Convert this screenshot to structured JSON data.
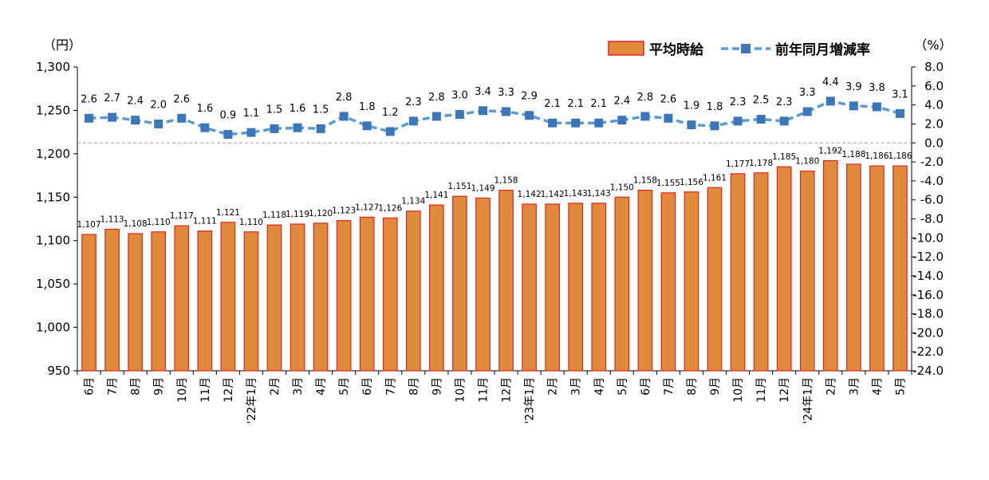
{
  "chart_data": {
    "type": "bar+line",
    "categories": [
      "6月",
      "7月",
      "8月",
      "9月",
      "10月",
      "11月",
      "12月",
      "'22年1月",
      "2月",
      "3月",
      "4月",
      "5月",
      "6月",
      "7月",
      "8月",
      "9月",
      "10月",
      "11月",
      "12月",
      "'23年1月",
      "2月",
      "3月",
      "4月",
      "5月",
      "6月",
      "7月",
      "8月",
      "9月",
      "10月",
      "11月",
      "12月",
      "'24年1月",
      "2月",
      "3月",
      "4月",
      "5月"
    ],
    "series": [
      {
        "name": "平均時給",
        "type": "bar",
        "axis": "left",
        "values": [
          1107,
          1113,
          1108,
          1110,
          1117,
          1111,
          1121,
          1110,
          1118,
          1119,
          1120,
          1123,
          1127,
          1126,
          1134,
          1141,
          1151,
          1149,
          1158,
          1142,
          1142,
          1143,
          1143,
          1150,
          1158,
          1155,
          1156,
          1161,
          1177,
          1178,
          1185,
          1180,
          1192,
          1188,
          1186,
          1186
        ],
        "labels": [
          "1,107",
          "1,113",
          "1,108",
          "1,110",
          "1,117",
          "1,111",
          "1,121",
          "1,110",
          "1,118",
          "1,119",
          "1,120",
          "1,123",
          "1,127",
          "1,126",
          "1,134",
          "1,141",
          "1,151",
          "1,149",
          "1,158",
          "1,142",
          "1,142",
          "1,143",
          "1,143",
          "1,150",
          "1,158",
          "1,155",
          "1,156",
          "1,161",
          "1,177",
          "1,178",
          "1,185",
          "1,180",
          "1,192",
          "1,188",
          "1,186",
          "1,186"
        ]
      },
      {
        "name": "前年同月増減率",
        "type": "line",
        "axis": "right",
        "values": [
          2.6,
          2.7,
          2.4,
          2.0,
          2.6,
          1.6,
          0.9,
          1.1,
          1.5,
          1.6,
          1.5,
          2.8,
          1.8,
          1.2,
          2.3,
          2.8,
          3.0,
          3.4,
          3.3,
          2.9,
          2.1,
          2.1,
          2.1,
          2.4,
          2.8,
          2.6,
          1.9,
          1.8,
          2.3,
          2.5,
          2.3,
          3.3,
          4.4,
          3.9,
          3.8,
          3.1
        ],
        "labels": [
          "2.6",
          "2.7",
          "2.4",
          "2.0",
          "2.6",
          "1.6",
          "0.9",
          "1.1",
          "1.5",
          "1.6",
          "1.5",
          "2.8",
          "1.8",
          "1.2",
          "2.3",
          "2.8",
          "3.0",
          "3.4",
          "3.3",
          "2.9",
          "2.1",
          "2.1",
          "2.1",
          "2.4",
          "2.8",
          "2.6",
          "1.9",
          "1.8",
          "2.3",
          "2.5",
          "2.3",
          "3.3",
          "4.4",
          "3.9",
          "3.8",
          "3.1"
        ]
      }
    ],
    "left_axis": {
      "unit": "（円）",
      "ylim": [
        950,
        1300
      ],
      "ticks": [
        "950",
        "1,000",
        "1,050",
        "1,100",
        "1,150",
        "1,200",
        "1,250",
        "1,300"
      ]
    },
    "right_axis": {
      "unit": "（%）",
      "ylim": [
        -24.0,
        8.0
      ],
      "ticks": [
        "-24.0",
        "-22.0",
        "-20.0",
        "-18.0",
        "-16.0",
        "-14.0",
        "-12.0",
        "-10.0",
        "-8.0",
        "-6.0",
        "-4.0",
        "-2.0",
        "0.0",
        "2.0",
        "4.0",
        "6.0",
        "8.0"
      ]
    },
    "zero_line": 0.0,
    "legend": "top-right",
    "colors": {
      "bar_fill": "#E08A3C",
      "bar_stroke": "#E3221C",
      "line": "#5B9BD5",
      "marker": "#3B76B8",
      "zero_line": "#A6A6A6"
    }
  }
}
